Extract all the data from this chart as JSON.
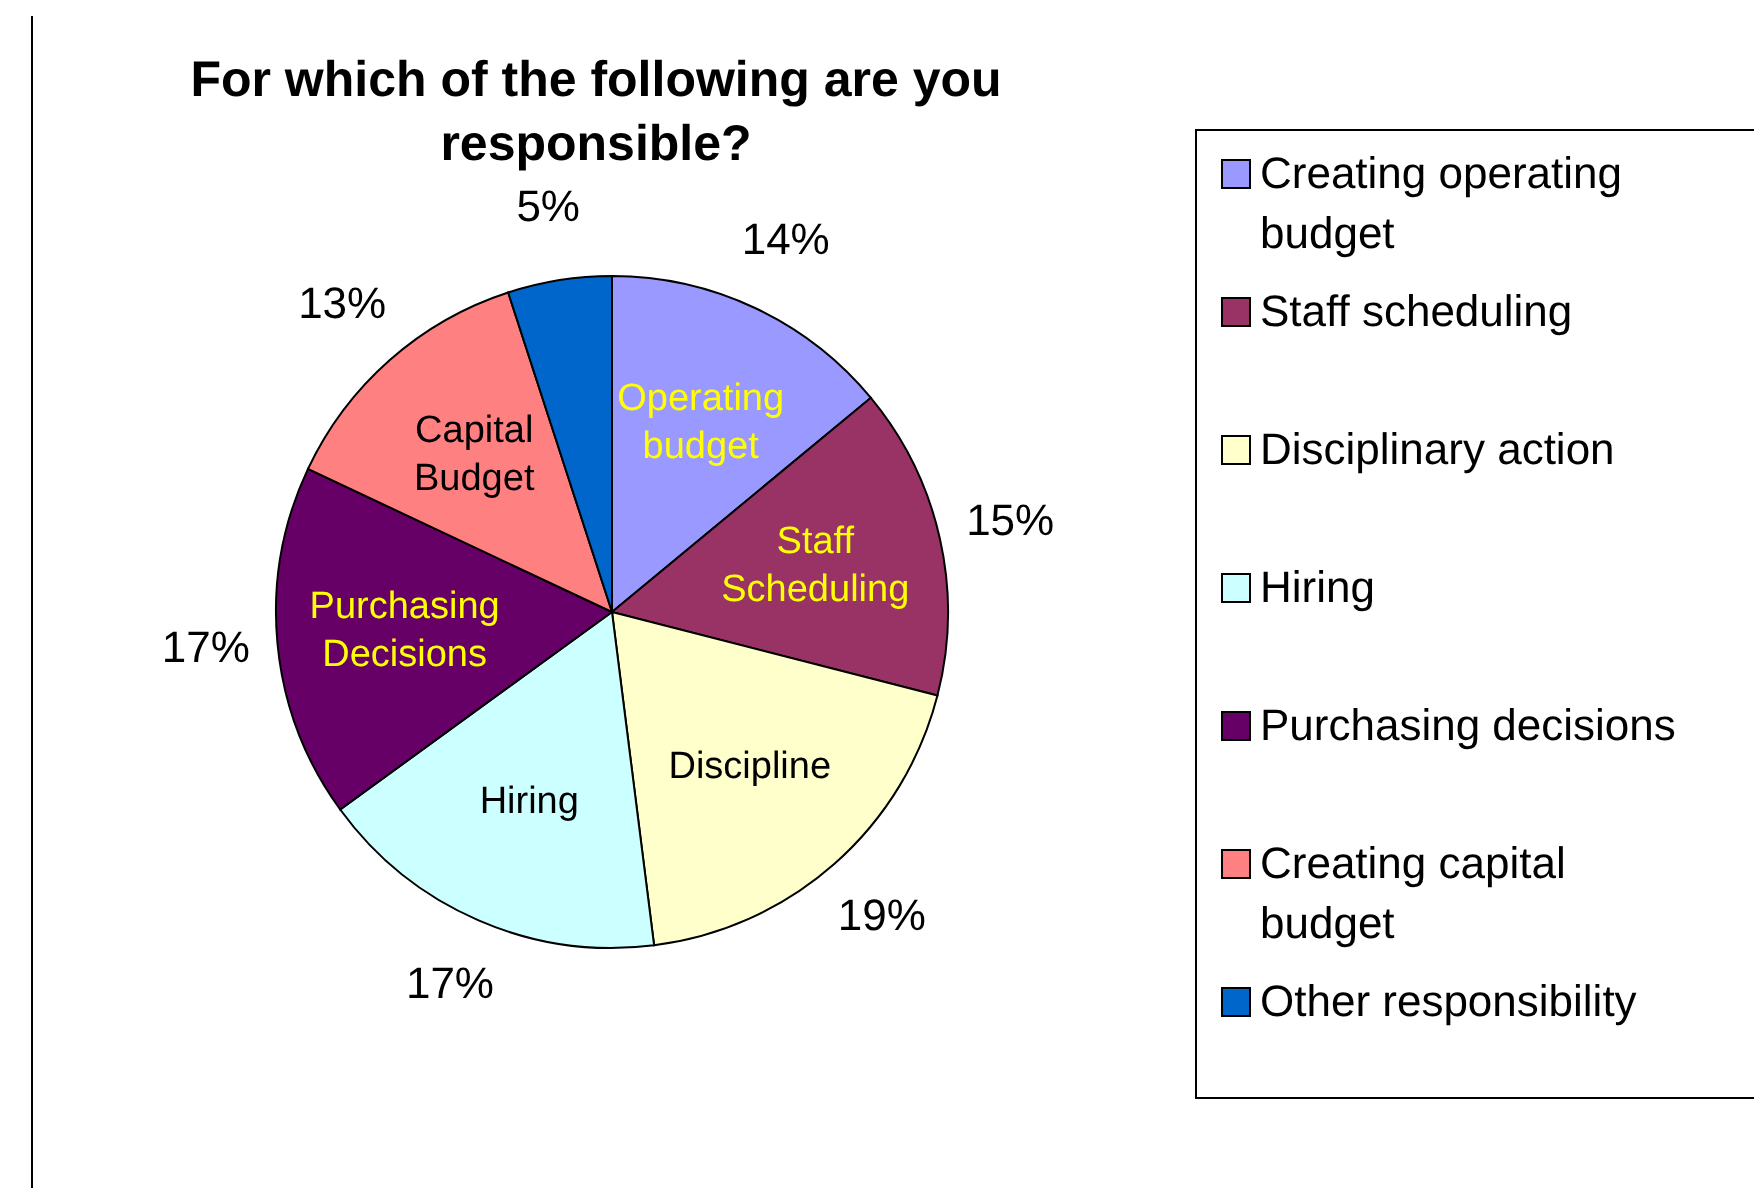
{
  "chart_data": {
    "type": "pie",
    "title": "For which of the following are you responsible?",
    "categories": [
      "Creating operating budget",
      "Staff scheduling",
      "Disciplinary action",
      "Hiring",
      "Purchasing decisions",
      "Creating capital budget",
      "Other responsibility"
    ],
    "values": [
      14,
      15,
      19,
      17,
      17,
      13,
      5
    ],
    "colors": [
      "#9999ff",
      "#993366",
      "#ffffcc",
      "#ccffff",
      "#660066",
      "#ff8080",
      "#0066cc"
    ],
    "value_labels": [
      "14%",
      "15%",
      "19%",
      "17%",
      "17%",
      "13%",
      "5%"
    ],
    "annotations": [
      {
        "text": "Operating budget",
        "x": "Creating operating budget"
      },
      {
        "text": "Staff Scheduling",
        "x": "Staff scheduling"
      },
      {
        "text": "Discipline",
        "x": "Disciplinary action"
      },
      {
        "text": "Hiring",
        "x": "Hiring"
      },
      {
        "text": "Purchasing Decisions",
        "x": "Purchasing decisions"
      },
      {
        "text": "Capital Budget",
        "x": "Creating capital budget"
      }
    ],
    "legend": "right"
  }
}
